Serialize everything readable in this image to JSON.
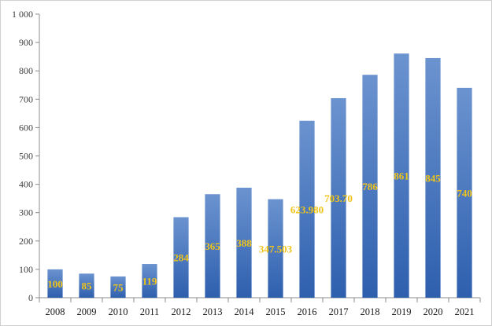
{
  "chart_data": {
    "type": "bar",
    "title": "",
    "xlabel": "",
    "ylabel": "",
    "ylim": [
      0,
      1000
    ],
    "yticks": [
      0,
      100,
      200,
      300,
      400,
      500,
      600,
      700,
      800,
      900,
      1000
    ],
    "ytick_labels": [
      "0",
      "100",
      "200",
      "300",
      "400",
      "500",
      "600",
      "700",
      "800",
      "900",
      "1 000"
    ],
    "categories": [
      "2008",
      "2009",
      "2010",
      "2011",
      "2012",
      "2013",
      "2014",
      "2015",
      "2016",
      "2017",
      "2018",
      "2019",
      "2020",
      "2021"
    ],
    "values": [
      100,
      85,
      75,
      119,
      284,
      365,
      388,
      347.503,
      623.98,
      703.7,
      786,
      861,
      845,
      740
    ],
    "data_labels": [
      "100",
      "85",
      "75",
      "119",
      "284",
      "365",
      "388",
      "347.503",
      "623.980",
      "703.70",
      "786",
      "861",
      "845",
      "740"
    ],
    "grid": false,
    "legend": "none",
    "colors": {
      "bar_top": "#6b93cf",
      "bar_bottom": "#2e5fae",
      "data_label": "#f0c419",
      "axis": "#8c8c8c"
    }
  }
}
